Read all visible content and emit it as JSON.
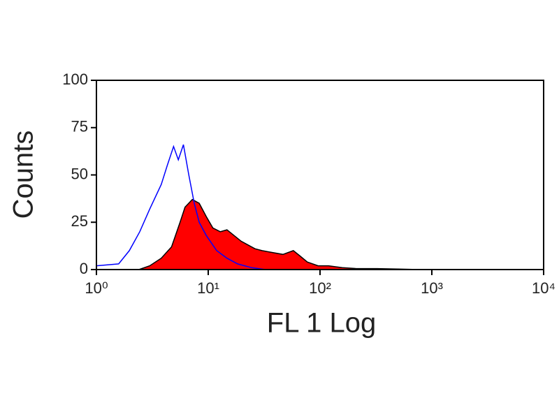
{
  "chart_data": {
    "type": "histogram-overlay",
    "x_label": "FL 1 Log",
    "y_label": "Counts",
    "xscale": "log",
    "xlim": [
      1,
      10000
    ],
    "xticks": [
      {
        "value": 1,
        "label": "10⁰"
      },
      {
        "value": 10,
        "label": "10¹"
      },
      {
        "value": 100,
        "label": "10²"
      },
      {
        "value": 1000,
        "label": "10³"
      },
      {
        "value": 10000,
        "label": "10⁴"
      }
    ],
    "ylim": [
      0,
      100
    ],
    "yticks": [
      0,
      25,
      50,
      75,
      100
    ],
    "series": [
      {
        "color": "#ff0000",
        "stroke": "#000000",
        "filled": true,
        "x": [
          2.4,
          3.0,
          3.8,
          4.7,
          5.6,
          6.2,
          7.2,
          8.3,
          9.6,
          11,
          12.8,
          14.7,
          17,
          19.7,
          22.7,
          26.2,
          30.3,
          37.6,
          46.6,
          57.7,
          66.7,
          77,
          96,
          119,
          158,
          211,
          325,
          500,
          777
        ],
        "values": [
          0,
          2,
          6,
          12,
          25,
          33,
          37,
          35,
          28,
          22,
          20,
          21,
          18,
          15,
          13,
          11,
          10,
          9,
          8,
          10,
          7,
          4,
          2,
          2,
          1,
          0.5,
          0.5,
          0.3,
          0
        ]
      },
      {
        "color": "#0000ff",
        "filled": false,
        "x": [
          1,
          1.58,
          1.97,
          2.44,
          3.0,
          3.8,
          4.3,
          4.9,
          5.4,
          6.0,
          6.7,
          7.5,
          8.3,
          9.6,
          11.9,
          14.7,
          18.3,
          24.4,
          32.5
        ],
        "values": [
          2,
          3,
          10,
          20,
          32,
          45,
          55,
          65,
          58,
          66,
          50,
          35,
          25,
          18,
          10,
          6,
          3,
          1,
          0
        ]
      }
    ]
  }
}
